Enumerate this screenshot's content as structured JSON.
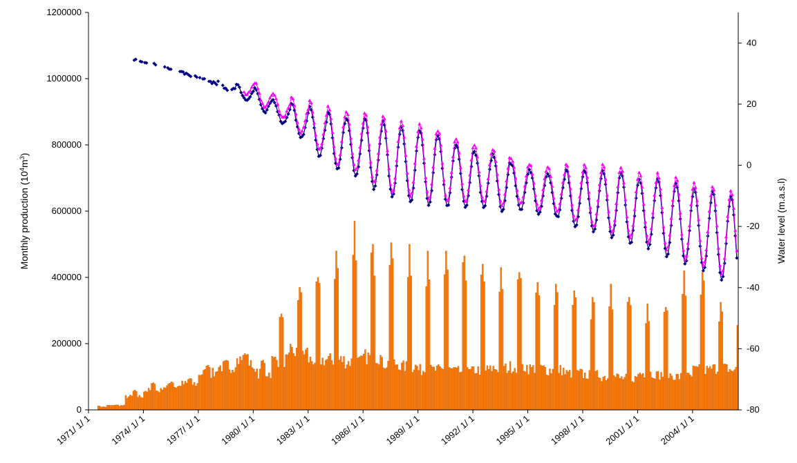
{
  "chart_data": {
    "type": "bar+line",
    "title": "",
    "xlabel": "",
    "ylabel_left": {
      "pre": "Monthly production (10",
      "sup1": "4",
      "mid": "m",
      "sup2": "3",
      "post": ")"
    },
    "ylabel_right": "Water level (m.a.s.l)",
    "left_axis": {
      "min": 0,
      "max": 1200000,
      "ticks": [
        "0",
        "200000",
        "400000",
        "600000",
        "800000",
        "1000000",
        "1200000"
      ]
    },
    "right_axis": {
      "min": -80,
      "max": 50,
      "ticks": [
        "-80",
        "-60",
        "-40",
        "-20",
        "0",
        "20",
        "40"
      ]
    },
    "x_range": [
      "1971-01-01",
      "2006-06-30"
    ],
    "x_ticks": [
      "1971/ 1/ 1",
      "1974/ 1/ 1",
      "1977/ 1/ 1",
      "1980/ 1/ 1",
      "1983/ 1/ 1",
      "1986/ 1/ 1",
      "1989/ 1/ 1",
      "1992/ 1/ 1",
      "1995/ 1/ 1",
      "1998/ 1/ 1",
      "2001/ 1/ 1",
      "2004/ 1/ 1"
    ],
    "colors": {
      "bars": "#FF7F0E",
      "bar_edge": "#C85A00",
      "series_dark": "#000080",
      "series_magenta": "#FF00FF"
    },
    "production_yearly": {
      "years": [
        1971,
        1972,
        1973,
        1974,
        1975,
        1976,
        1977,
        1978,
        1979,
        1980,
        1981,
        1982,
        1983,
        1984,
        1985,
        1986,
        1987,
        1988,
        1989,
        1990,
        1991,
        1992,
        1993,
        1994,
        1995,
        1996,
        1997,
        1998,
        1999,
        2000,
        2001,
        2002,
        2003,
        2004,
        2005,
        2006
      ],
      "base": [
        9000,
        13000,
        40000,
        58000,
        70000,
        78000,
        110000,
        130000,
        150000,
        110000,
        150000,
        175000,
        150000,
        150000,
        145000,
        160000,
        140000,
        130000,
        120000,
        120000,
        115000,
        120000,
        125000,
        130000,
        125000,
        120000,
        110000,
        105000,
        100000,
        95000,
        110000,
        105000,
        100000,
        120000,
        125000,
        120000
      ],
      "peak": [
        12000,
        15000,
        60000,
        82000,
        85000,
        95000,
        135000,
        150000,
        170000,
        150000,
        290000,
        370000,
        400000,
        480000,
        570000,
        500000,
        505000,
        500000,
        480000,
        480000,
        465000,
        440000,
        430000,
        415000,
        385000,
        380000,
        360000,
        340000,
        380000,
        340000,
        320000,
        310000,
        420000,
        415000,
        325000,
        290000
      ]
    },
    "water_level_yearly": {
      "years": [
        1971,
        1972,
        1973,
        1974,
        1975,
        1976,
        1977,
        1978,
        1979,
        1980,
        1981,
        1982,
        1983,
        1984,
        1985,
        1986,
        1987,
        1988,
        1989,
        1990,
        1991,
        1992,
        1993,
        1994,
        1995,
        1996,
        1997,
        1998,
        1999,
        2000,
        2001,
        2002,
        2003,
        2004,
        2005,
        2006
      ],
      "mean": [
        null,
        null,
        36,
        34,
        33,
        31,
        29,
        27,
        25,
        23,
        19,
        16,
        13,
        9,
        7,
        5,
        3,
        1,
        0,
        -1,
        -3,
        -4,
        -5,
        -6,
        -8,
        -9,
        -10,
        -11,
        -12,
        -13,
        -15,
        -16,
        -18,
        -20,
        -22,
        -24
      ],
      "amplitude": [
        0,
        0,
        0,
        0,
        0,
        0,
        0,
        1,
        2,
        3,
        3,
        5,
        7,
        9,
        9,
        11,
        12,
        12,
        12,
        11,
        10,
        9,
        9,
        7,
        7,
        7,
        9,
        10,
        11,
        11,
        11,
        12,
        13,
        13,
        14,
        14
      ]
    },
    "series": [
      {
        "type": "bar",
        "axis": "left"
      },
      {
        "type": "line",
        "axis": "right",
        "marker": "diamond"
      },
      {
        "type": "line",
        "axis": "right",
        "marker": "triangle"
      }
    ]
  }
}
